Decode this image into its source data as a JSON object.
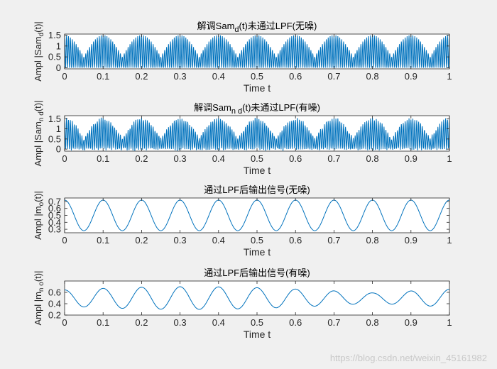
{
  "figure": {
    "background": "#f0f0f0",
    "line_color": "#0072bd",
    "watermark": "https://blog.csdn.net/weixin_45161982"
  },
  "chart_data": [
    {
      "type": "line",
      "title": "解调Sam_d(t)未通过LPF(无噪)",
      "title_parts": [
        "解调Sam",
        "d",
        "(t)未通过LPF(无噪)"
      ],
      "xlabel": "Time t",
      "ylabel_parts": [
        "Ampl |Sam",
        "d",
        "(t)|"
      ],
      "xlim": [
        0,
        1
      ],
      "ylim": [
        -0.05,
        1.55
      ],
      "xticks": [
        "0",
        "0.1",
        "0.2",
        "0.3",
        "0.4",
        "0.5",
        "0.6",
        "0.7",
        "0.8",
        "0.9",
        "1"
      ],
      "yticks": [
        "0",
        "0.5",
        "1",
        "1.5"
      ],
      "series": [
        {
          "description": "rectified AM carrier, envelope 0.5+0.5|cos(20πt)|·… peaks ≈1.5 at t=0.1k, carrier ~100 Hz",
          "envelope_max": 1.5,
          "envelope_min": 0.5,
          "envelope_period": 0.1,
          "carrier_cycles": 100,
          "noise": false
        }
      ]
    },
    {
      "type": "line",
      "title": "解调Sam_n d(t)未通过LPF(有噪)",
      "title_parts": [
        "解调Sam",
        "n d",
        "(t)未通过LPF(有噪)"
      ],
      "xlabel": "Time t",
      "ylabel_parts": [
        "Ampl |Sam",
        "n d",
        "(t)|"
      ],
      "xlim": [
        0,
        1
      ],
      "ylim": [
        -0.1,
        1.65
      ],
      "xticks": [
        "0",
        "0.1",
        "0.2",
        "0.3",
        "0.4",
        "0.5",
        "0.6",
        "0.7",
        "0.8",
        "0.9",
        "1"
      ],
      "yticks": [
        "0",
        "0.5",
        "1",
        "1.5"
      ],
      "series": [
        {
          "description": "same as above with additive noise",
          "envelope_max": 1.5,
          "envelope_min": 0.5,
          "envelope_period": 0.1,
          "carrier_cycles": 100,
          "noise": true
        }
      ]
    },
    {
      "type": "line",
      "title": "通过LPF后输出信号(无噪)",
      "title_parts": [
        "通过LPF后输出信号(无噪)"
      ],
      "xlabel": "Time t",
      "ylabel_parts": [
        "Ampl |m",
        "o",
        "(t)|"
      ],
      "xlim": [
        0,
        1
      ],
      "ylim": [
        0.25,
        0.75
      ],
      "xticks": [
        "0",
        "0.1",
        "0.2",
        "0.3",
        "0.4",
        "0.5",
        "0.6",
        "0.7",
        "0.8",
        "0.9",
        "1"
      ],
      "yticks": [
        "0.3",
        "0.4",
        "0.5",
        "0.6",
        "0.7"
      ],
      "series": [
        {
          "description": "sinusoid",
          "mean": 0.5,
          "amplitude": 0.22,
          "period": 0.1,
          "peak_at": 0.0,
          "noise": false
        }
      ]
    },
    {
      "type": "line",
      "title": "通过LPF后输出信号(有噪)",
      "title_parts": [
        "通过LPF后输出信号(有噪)"
      ],
      "xlabel": "Time t",
      "ylabel_parts": [
        "Ampl |m",
        "n o",
        "(t)|"
      ],
      "xlim": [
        0,
        1
      ],
      "ylim": [
        0.2,
        0.8
      ],
      "xticks": [
        "0",
        "0.1",
        "0.2",
        "0.3",
        "0.4",
        "0.5",
        "0.6",
        "0.7",
        "0.8",
        "0.9",
        "1"
      ],
      "yticks": [
        "0.2",
        "0.4",
        "0.6"
      ],
      "series": [
        {
          "description": "sinusoid with slowly varying amplitude",
          "mean": 0.5,
          "amplitude": 0.2,
          "period": 0.1,
          "peak_at": 0.0,
          "noise": true
        }
      ]
    }
  ]
}
